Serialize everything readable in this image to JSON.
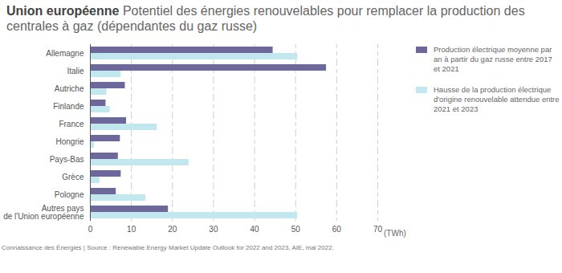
{
  "chart_data": {
    "type": "bar",
    "orientation": "horizontal",
    "title": "Union européenne",
    "subtitle": "Potentiel des énergies renouvelables pour remplacer la production des centrales à gaz (dépendantes du gaz russe)",
    "caption": "Connaissance des Énergies | Source : Renewable Energy Market Update Outlook for 2022 and 2023, AIE, mai 2022.",
    "x_label": "(TWh)",
    "categories": [
      "Allemagne",
      "Italie",
      "Autriche",
      "Finlande",
      "France",
      "Hongrie",
      "Pays-Bas",
      "Grèce",
      "Pologne",
      "Autres pays\nde l'Union européenne"
    ],
    "series": [
      {
        "name": "Production électrique moyenne par an à partir du gaz russe entre 2017 et 2021",
        "color": "#6c6899",
        "values": [
          44.5,
          57.5,
          8.5,
          3.8,
          8.8,
          7.3,
          6.8,
          7.5,
          6.3,
          19
        ]
      },
      {
        "name": "Hausse de la production électrique d'origine renouvelable attendue entre 2021 et 2023",
        "color": "#c3e7ee",
        "values": [
          50.5,
          7.5,
          4,
          4.8,
          16.3,
          1,
          24,
          2.3,
          13.5,
          50.5
        ]
      }
    ],
    "xlim": [
      0,
      70
    ],
    "xticks": [
      0,
      10,
      20,
      30,
      40,
      50,
      60,
      70
    ],
    "grid": true,
    "legend": "right"
  }
}
